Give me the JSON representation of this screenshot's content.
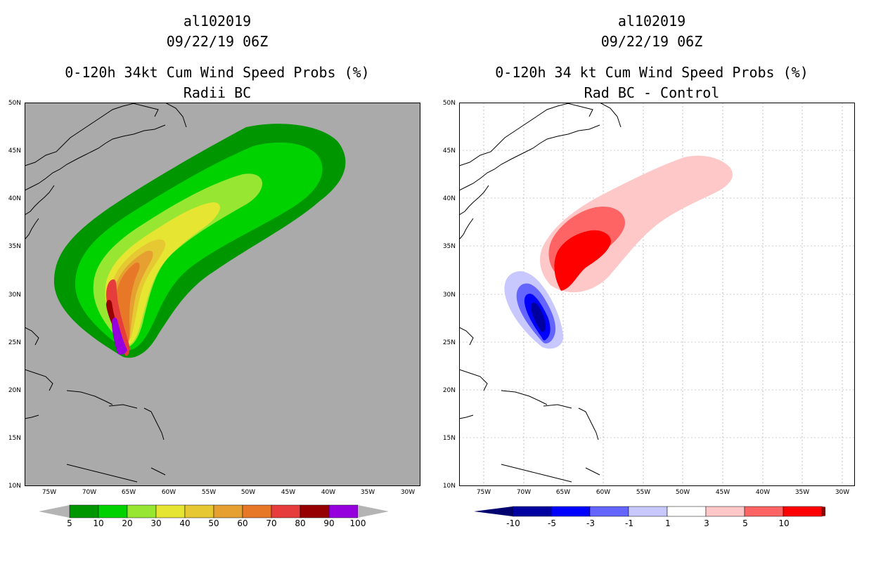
{
  "left": {
    "title_line1": "al102019",
    "title_line2": "09/22/19 06Z",
    "title_line3": "0-120h 34kt Cum Wind Speed Probs (%)",
    "title_line4": "Radii BC",
    "colorbar": {
      "labels": [
        "5",
        "10",
        "20",
        "30",
        "40",
        "50",
        "60",
        "70",
        "80",
        "90",
        "100"
      ],
      "colors": [
        "#009600",
        "#00d200",
        "#96e632",
        "#e6e632",
        "#e6c832",
        "#e6a032",
        "#e67828",
        "#e63c3c",
        "#960000",
        "#9600dc"
      ],
      "end_color": "#b4b4b4"
    },
    "background_color": "#aaaaaa"
  },
  "right": {
    "title_line1": "al102019",
    "title_line2": "09/22/19 06Z",
    "title_line3": "0-120h 34 kt Cum Wind Speed Probs (%)",
    "title_line4": "Rad BC - Control",
    "colorbar": {
      "labels": [
        "-10",
        "-5",
        "-3",
        "-1",
        "1",
        "3",
        "5",
        "10"
      ],
      "colors": [
        "#0000a0",
        "#0000ff",
        "#6464ff",
        "#c8c8ff",
        "#ffffff",
        "#ffc8c8",
        "#ff6464",
        "#ff0000"
      ],
      "low_end": "#00006e",
      "high_end": "#820000"
    }
  },
  "axes": {
    "lat_labels": [
      "50N",
      "45N",
      "40N",
      "35N",
      "30N",
      "25N",
      "20N",
      "15N",
      "10N"
    ],
    "lon_labels": [
      "75W",
      "70W",
      "65W",
      "60W",
      "55W",
      "50W",
      "45W",
      "40W",
      "35W",
      "30W"
    ]
  }
}
